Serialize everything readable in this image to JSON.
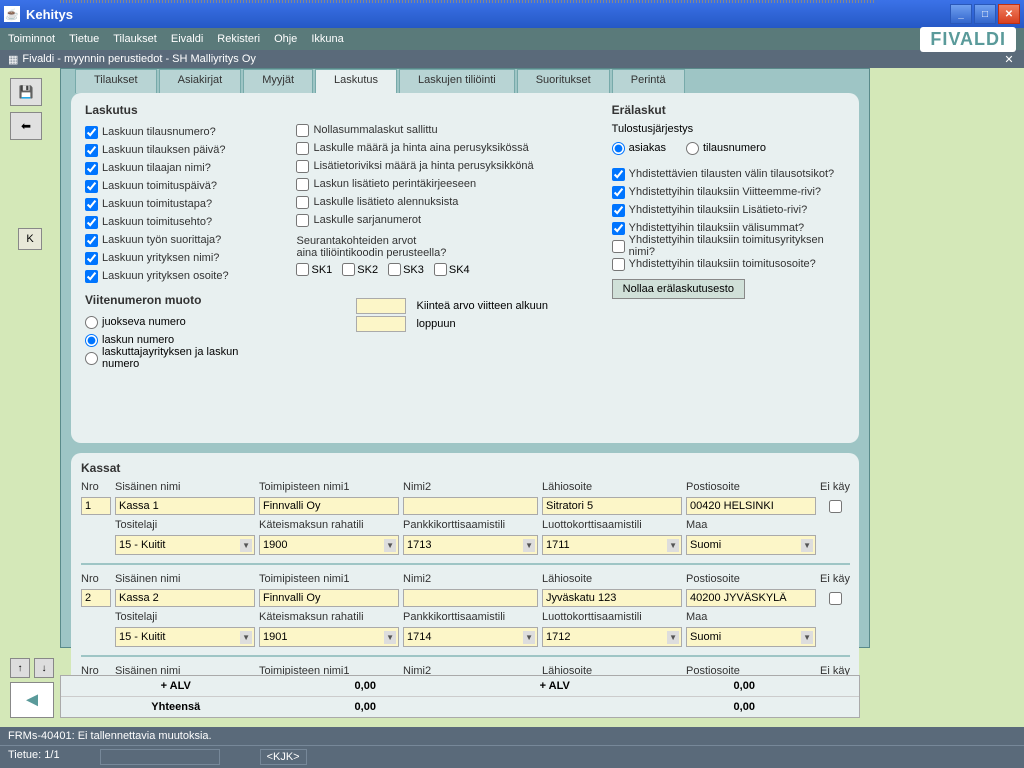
{
  "window": {
    "title": "Kehitys"
  },
  "menu": {
    "items": [
      "Toiminnot",
      "Tietue",
      "Tilaukset",
      "Eivaldi",
      "Rekisteri",
      "Ohje",
      "Ikkuna"
    ],
    "logo": "FIVALDI"
  },
  "subwindow": {
    "title": "Fivaldi - myynnin perustiedot - SH Malliyritys Oy"
  },
  "tabs": {
    "items": [
      "Tilaukset",
      "Asiakirjat",
      "Myyjät",
      "Laskutus",
      "Laskujen tiliöinti",
      "Suoritukset",
      "Perintä"
    ],
    "active": 3
  },
  "leftK": "K",
  "laskutus": {
    "title": "Laskutus",
    "col1": [
      {
        "label": "Laskuun tilausnumero?",
        "checked": true
      },
      {
        "label": "Laskuun tilauksen päivä?",
        "checked": true
      },
      {
        "label": "Laskuun tilaajan nimi?",
        "checked": true
      },
      {
        "label": "Laskuun toimituspäivä?",
        "checked": true
      },
      {
        "label": "Laskuun toimitustapa?",
        "checked": true
      },
      {
        "label": "Laskuun toimitusehto?",
        "checked": true
      },
      {
        "label": "Laskuun työn suorittaja?",
        "checked": true
      },
      {
        "label": "Laskuun yrityksen nimi?",
        "checked": true
      },
      {
        "label": "Laskuun yrityksen osoite?",
        "checked": true
      }
    ],
    "col2": [
      {
        "label": "Nollasummalaskut sallittu",
        "checked": false
      },
      {
        "label": "Laskulle määrä ja hinta aina perusyksikössä",
        "checked": false
      },
      {
        "label": "Lisätietoriviksi määrä ja hinta perusyksikkönä",
        "checked": false
      },
      {
        "label": "Laskun lisätieto perintäkirjeeseen",
        "checked": false
      },
      {
        "label": "Laskulle lisätieto alennuksista",
        "checked": false
      },
      {
        "label": "Laskulle sarjanumerot",
        "checked": false
      }
    ],
    "seuranta": {
      "title1": "Seurantakohteiden arvot",
      "title2": "aina tiliöintikoodin perusteella?",
      "sk": [
        "SK1",
        "SK2",
        "SK3",
        "SK4"
      ]
    },
    "viite": {
      "title": "Viitenumeron muoto",
      "options": [
        "juokseva numero",
        "laskun numero",
        "laskuttajayrityksen ja laskun numero"
      ],
      "selected": 1,
      "label1": "Kiinteä arvo viitteen alkuun",
      "label2": "loppuun"
    }
  },
  "eralaskut": {
    "title": "Erälaskut",
    "tulostTitle": "Tulostusjärjestys",
    "tulostOptions": [
      "asiakas",
      "tilausnumero"
    ],
    "tulostSelected": 0,
    "checks": [
      {
        "label": "Yhdistettävien tilausten välin tilausotsikot?",
        "checked": true
      },
      {
        "label": "Yhdistettyihin tilauksiin Viitteemme-rivi?",
        "checked": true
      },
      {
        "label": "Yhdistettyihin tilauksiin Lisätieto-rivi?",
        "checked": true
      },
      {
        "label": "Yhdistettyihin tilauksiin välisummat?",
        "checked": true
      },
      {
        "label": "Yhdistettyihin tilauksiin toimitusyrityksen nimi?",
        "checked": false
      },
      {
        "label": "Yhdistettyihin tilauksiin toimitusosoite?",
        "checked": false
      }
    ],
    "resetBtn": "Nollaa erälaskutusesto"
  },
  "kassat": {
    "title": "Kassat",
    "headers1": [
      "Nro",
      "Sisäinen nimi",
      "Toimipisteen nimi1",
      "Nimi2",
      "Lähiosoite",
      "Postiosoite",
      "Ei käyt."
    ],
    "headers2": [
      "",
      "Tositelaji",
      "Käteismaksun rahatili",
      "Pankkikorttisaamistili",
      "Luottokorttisaamistili",
      "Maa",
      ""
    ],
    "rows": [
      {
        "nro": "1",
        "nimi": "Kassa 1",
        "toimi": "Finnvalli Oy",
        "nimi2": "",
        "lahi": "Sitratori 5",
        "posti": "00420 HELSINKI",
        "eikayt": false,
        "tosite": "15 - Kuitit",
        "kateis": "1900",
        "pankki": "1713",
        "luotto": "1711",
        "maa": "Suomi"
      },
      {
        "nro": "2",
        "nimi": "Kassa 2",
        "toimi": "Finnvalli Oy",
        "nimi2": "",
        "lahi": "Jyväskatu 123",
        "posti": "40200 JYVÄSKYLÄ",
        "eikayt": false,
        "tosite": "15 - Kuitit",
        "kateis": "1901",
        "pankki": "1714",
        "luotto": "1712",
        "maa": "Suomi"
      },
      {
        "nro": "",
        "nimi": "",
        "toimi": "",
        "nimi2": "",
        "lahi": "",
        "posti": "",
        "eikayt": false,
        "tosite": "",
        "kateis": "",
        "pankki": "",
        "luotto": "",
        "maa": ""
      }
    ]
  },
  "totals": {
    "alvLabel": "+ ALV",
    "alv1": "0,00",
    "alv2": "0,00",
    "yhtLabel": "Yhteensä",
    "yht1": "0,00",
    "yht2": "0,00"
  },
  "status": {
    "msg": "FRMs-40401: Ei tallennettavia muutoksia.",
    "tietue": "Tietue: 1/1",
    "user": "<KJK>"
  }
}
